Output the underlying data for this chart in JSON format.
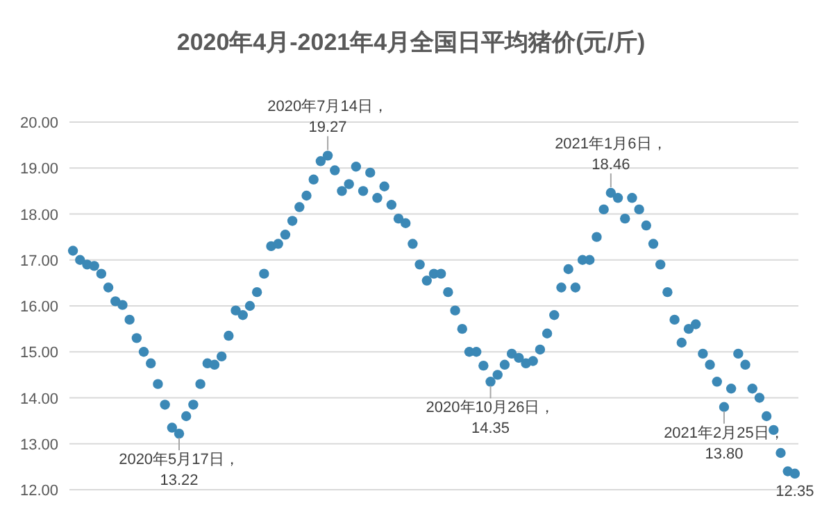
{
  "chart_data": {
    "type": "scatter",
    "title": "2020年4月-2021年4月全国日平均猪价(元/斤)",
    "categories": [
      null,
      null,
      null,
      null,
      null,
      null,
      null,
      null,
      null,
      null,
      null,
      null,
      null,
      null,
      null,
      null,
      null,
      null,
      null,
      null,
      null,
      null,
      null,
      null,
      null,
      null,
      null,
      null,
      null,
      null,
      null,
      null,
      null,
      null,
      null,
      null,
      null,
      null,
      null,
      null,
      null,
      null,
      null,
      null,
      null,
      null,
      null,
      null,
      null,
      null,
      null,
      null,
      null,
      null,
      null,
      null,
      null,
      null,
      null,
      null,
      null,
      null,
      null,
      null,
      null,
      null,
      null,
      null,
      null,
      null,
      null,
      null,
      null,
      null,
      null,
      null,
      null,
      null,
      null,
      null,
      null,
      null,
      null,
      null,
      null,
      null,
      null,
      null,
      null,
      null,
      null,
      null,
      null,
      null,
      null,
      null,
      null,
      null,
      null,
      null,
      null,
      null,
      null
    ],
    "series": [
      {
        "color": "#3b88b6",
        "values": [
          17.2,
          17.0,
          16.9,
          16.87,
          16.7,
          16.4,
          16.1,
          16.02,
          15.7,
          15.3,
          15.0,
          14.75,
          14.3,
          13.85,
          13.35,
          13.22,
          13.6,
          13.85,
          14.3,
          14.75,
          14.72,
          14.9,
          15.35,
          15.9,
          15.8,
          16.0,
          16.3,
          16.7,
          17.3,
          17.35,
          17.55,
          17.85,
          18.15,
          18.4,
          18.75,
          19.15,
          19.27,
          18.95,
          18.5,
          18.65,
          19.03,
          18.5,
          18.9,
          18.35,
          18.6,
          18.2,
          17.9,
          17.8,
          17.35,
          16.9,
          16.55,
          16.7,
          16.7,
          16.3,
          15.9,
          15.5,
          15.0,
          15.0,
          14.7,
          14.35,
          14.5,
          14.72,
          14.96,
          14.87,
          14.75,
          14.8,
          15.05,
          15.4,
          15.8,
          16.4,
          16.8,
          16.4,
          17.0,
          17.0,
          17.5,
          18.1,
          18.46,
          18.35,
          17.9,
          18.35,
          18.1,
          17.75,
          17.35,
          16.9,
          16.3,
          15.7,
          15.2,
          15.5,
          15.6,
          14.96,
          14.72,
          14.35,
          13.8,
          14.2,
          14.96,
          14.72,
          14.2,
          14.0,
          13.6,
          13.3,
          12.8,
          12.4,
          12.35
        ]
      }
    ],
    "ylim": [
      12,
      20
    ],
    "yticks": [
      {
        "value": 12,
        "label": "12.00"
      },
      {
        "value": 13,
        "label": "13.00"
      },
      {
        "value": 14,
        "label": "14.00"
      },
      {
        "value": 15,
        "label": "15.00"
      },
      {
        "value": 16,
        "label": "16.00"
      },
      {
        "value": 17,
        "label": "17.00"
      },
      {
        "value": 18,
        "label": "18.00"
      },
      {
        "value": 19,
        "label": "19.00"
      },
      {
        "value": 20,
        "label": "20.00"
      }
    ],
    "tick_labels": "y",
    "grid": "y",
    "marker": "circle",
    "annotations": [
      {
        "text": "2020年5月17日，\n13.22",
        "y": 13.22
      },
      {
        "text": "2020年7月14日，\n19.27",
        "y": 19.27
      },
      {
        "text": "2020年10月26日，\n14.35",
        "y": 14.35
      },
      {
        "text": "2021年1月6日，\n18.46",
        "y": 18.46
      },
      {
        "text": "2021年2月25日，\n13.80",
        "y": 13.8
      },
      {
        "text": "12.35",
        "y": 12.35
      }
    ]
  }
}
